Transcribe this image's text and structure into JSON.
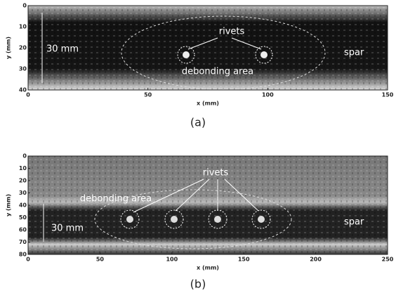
{
  "panels": [
    {
      "xlim": [
        0,
        150
      ],
      "ylim": [
        0,
        40
      ],
      "xticks": [
        0,
        50,
        100,
        150
      ],
      "yticks": [
        0,
        10,
        20,
        30,
        40
      ],
      "xlabel": "x (mm)",
      "ylabel": "y (mm)",
      "caption": "(a)",
      "annotations": [
        "30 mm",
        "rivets",
        "spar",
        "debonding area"
      ]
    },
    {
      "xlim": [
        0,
        250
      ],
      "ylim": [
        0,
        80
      ],
      "xticks": [
        0,
        50,
        100,
        150,
        200,
        250
      ],
      "yticks": [
        0,
        10,
        20,
        30,
        40,
        50,
        60,
        70,
        80
      ],
      "xlabel": "x (mm)",
      "ylabel": "y (mm)",
      "caption": "(b)",
      "annotations": [
        "rivets",
        "debonding area",
        "30 mm",
        "spar"
      ]
    }
  ]
}
